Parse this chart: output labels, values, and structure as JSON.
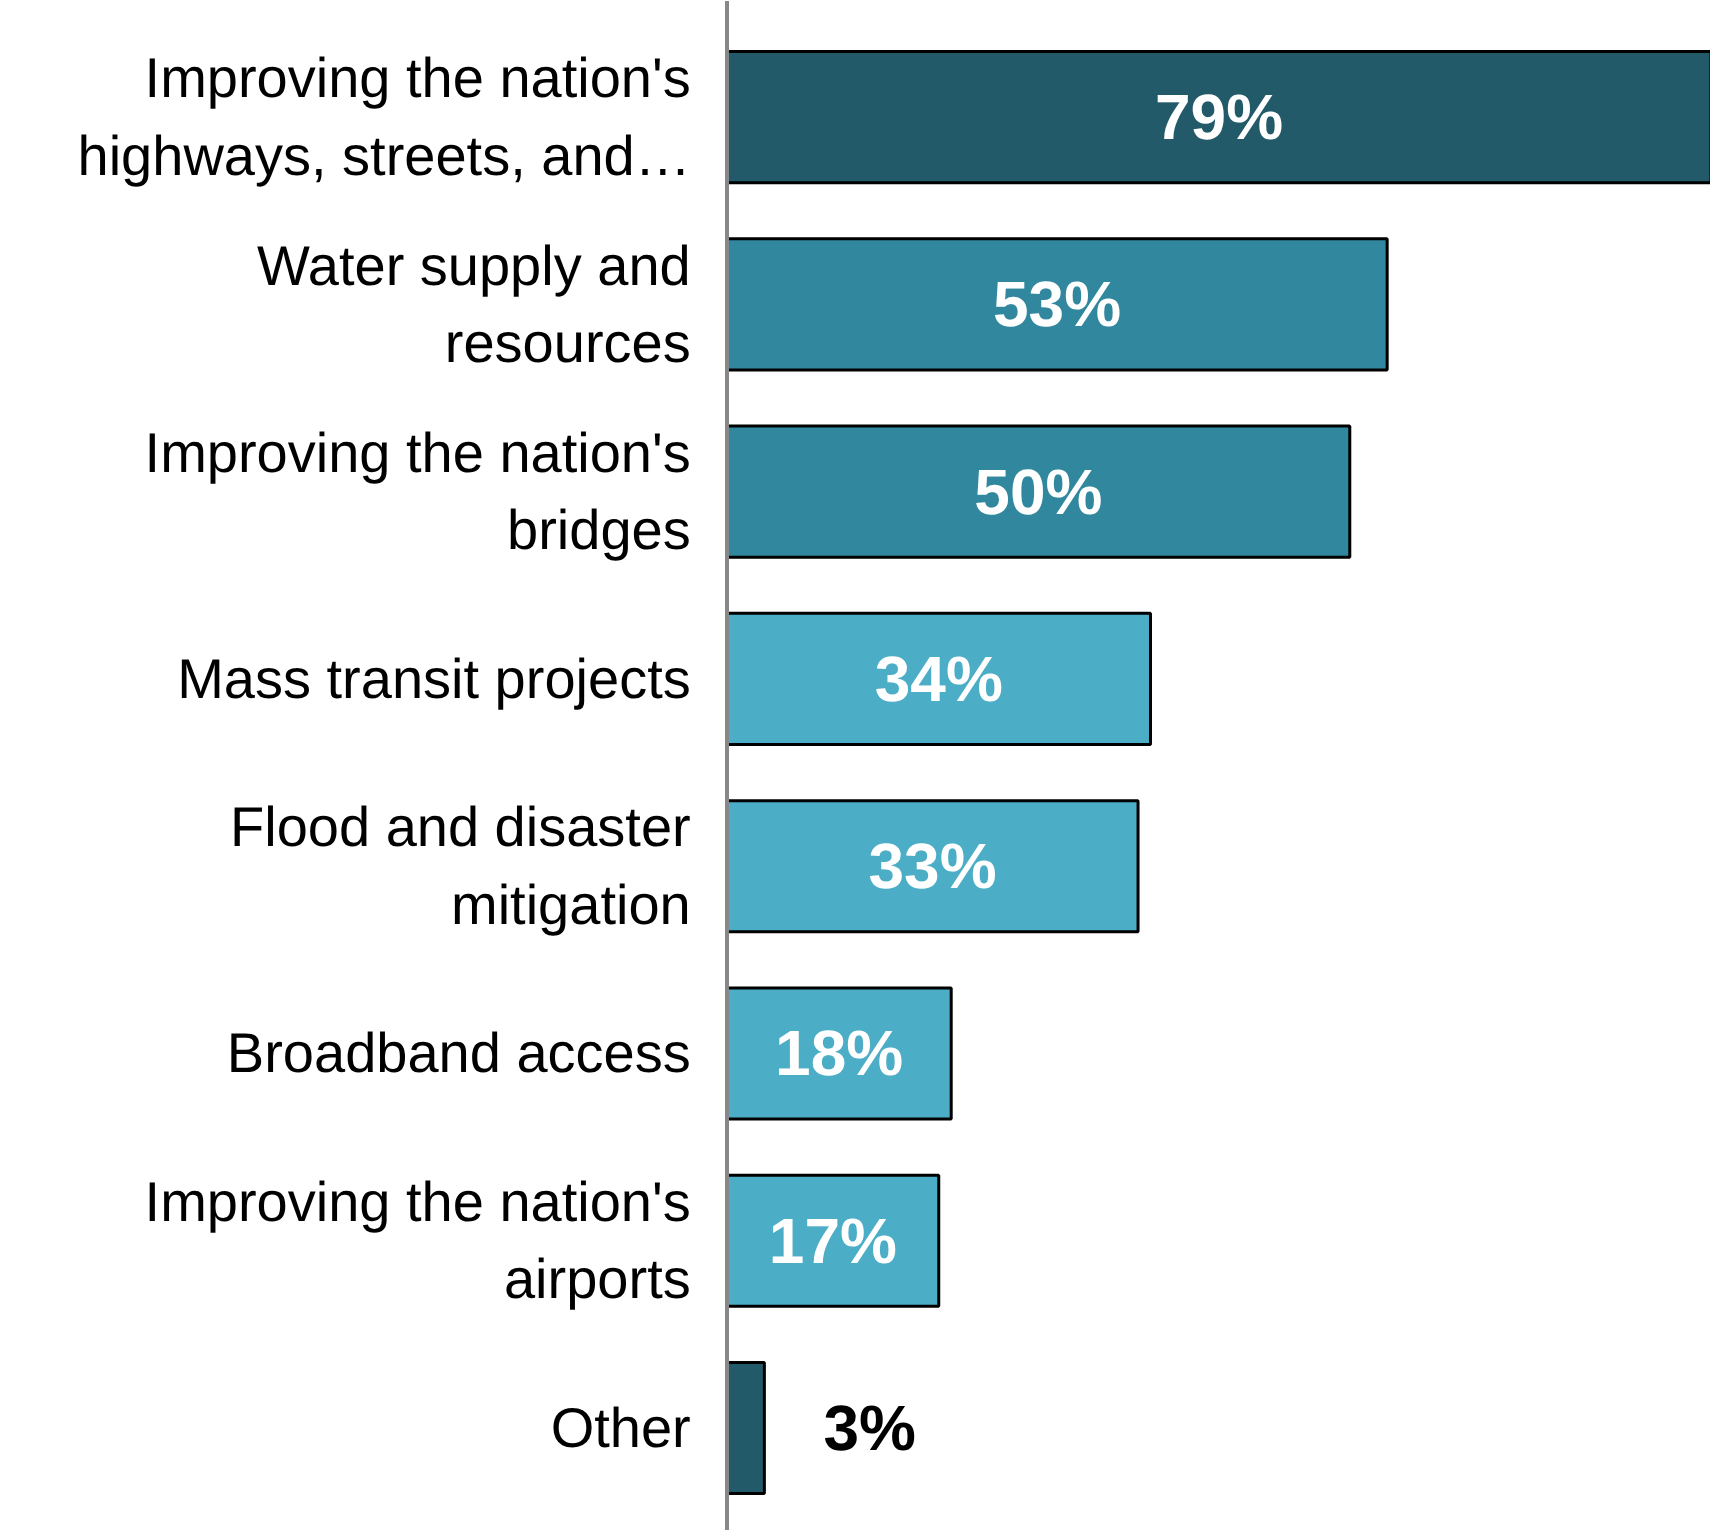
{
  "chart_data": {
    "type": "bar",
    "orientation": "horizontal",
    "categories": [
      "Improving the nation's highways, streets, and…",
      "Water supply and resources",
      "Improving the nation's bridges",
      "Mass transit projects",
      "Flood and disaster mitigation",
      "Broadband access",
      "Improving the nation's airports",
      "Other"
    ],
    "values": [
      79,
      53,
      50,
      34,
      33,
      18,
      17,
      3
    ],
    "colors": [
      "#235a69",
      "#31889e",
      "#31889e",
      "#4badc6",
      "#4badc6",
      "#4badc6",
      "#4badc6",
      "#235a69"
    ],
    "value_labels": [
      "79%",
      "53%",
      "50%",
      "34%",
      "33%",
      "18%",
      "17%",
      "3%"
    ],
    "grid": false
  }
}
